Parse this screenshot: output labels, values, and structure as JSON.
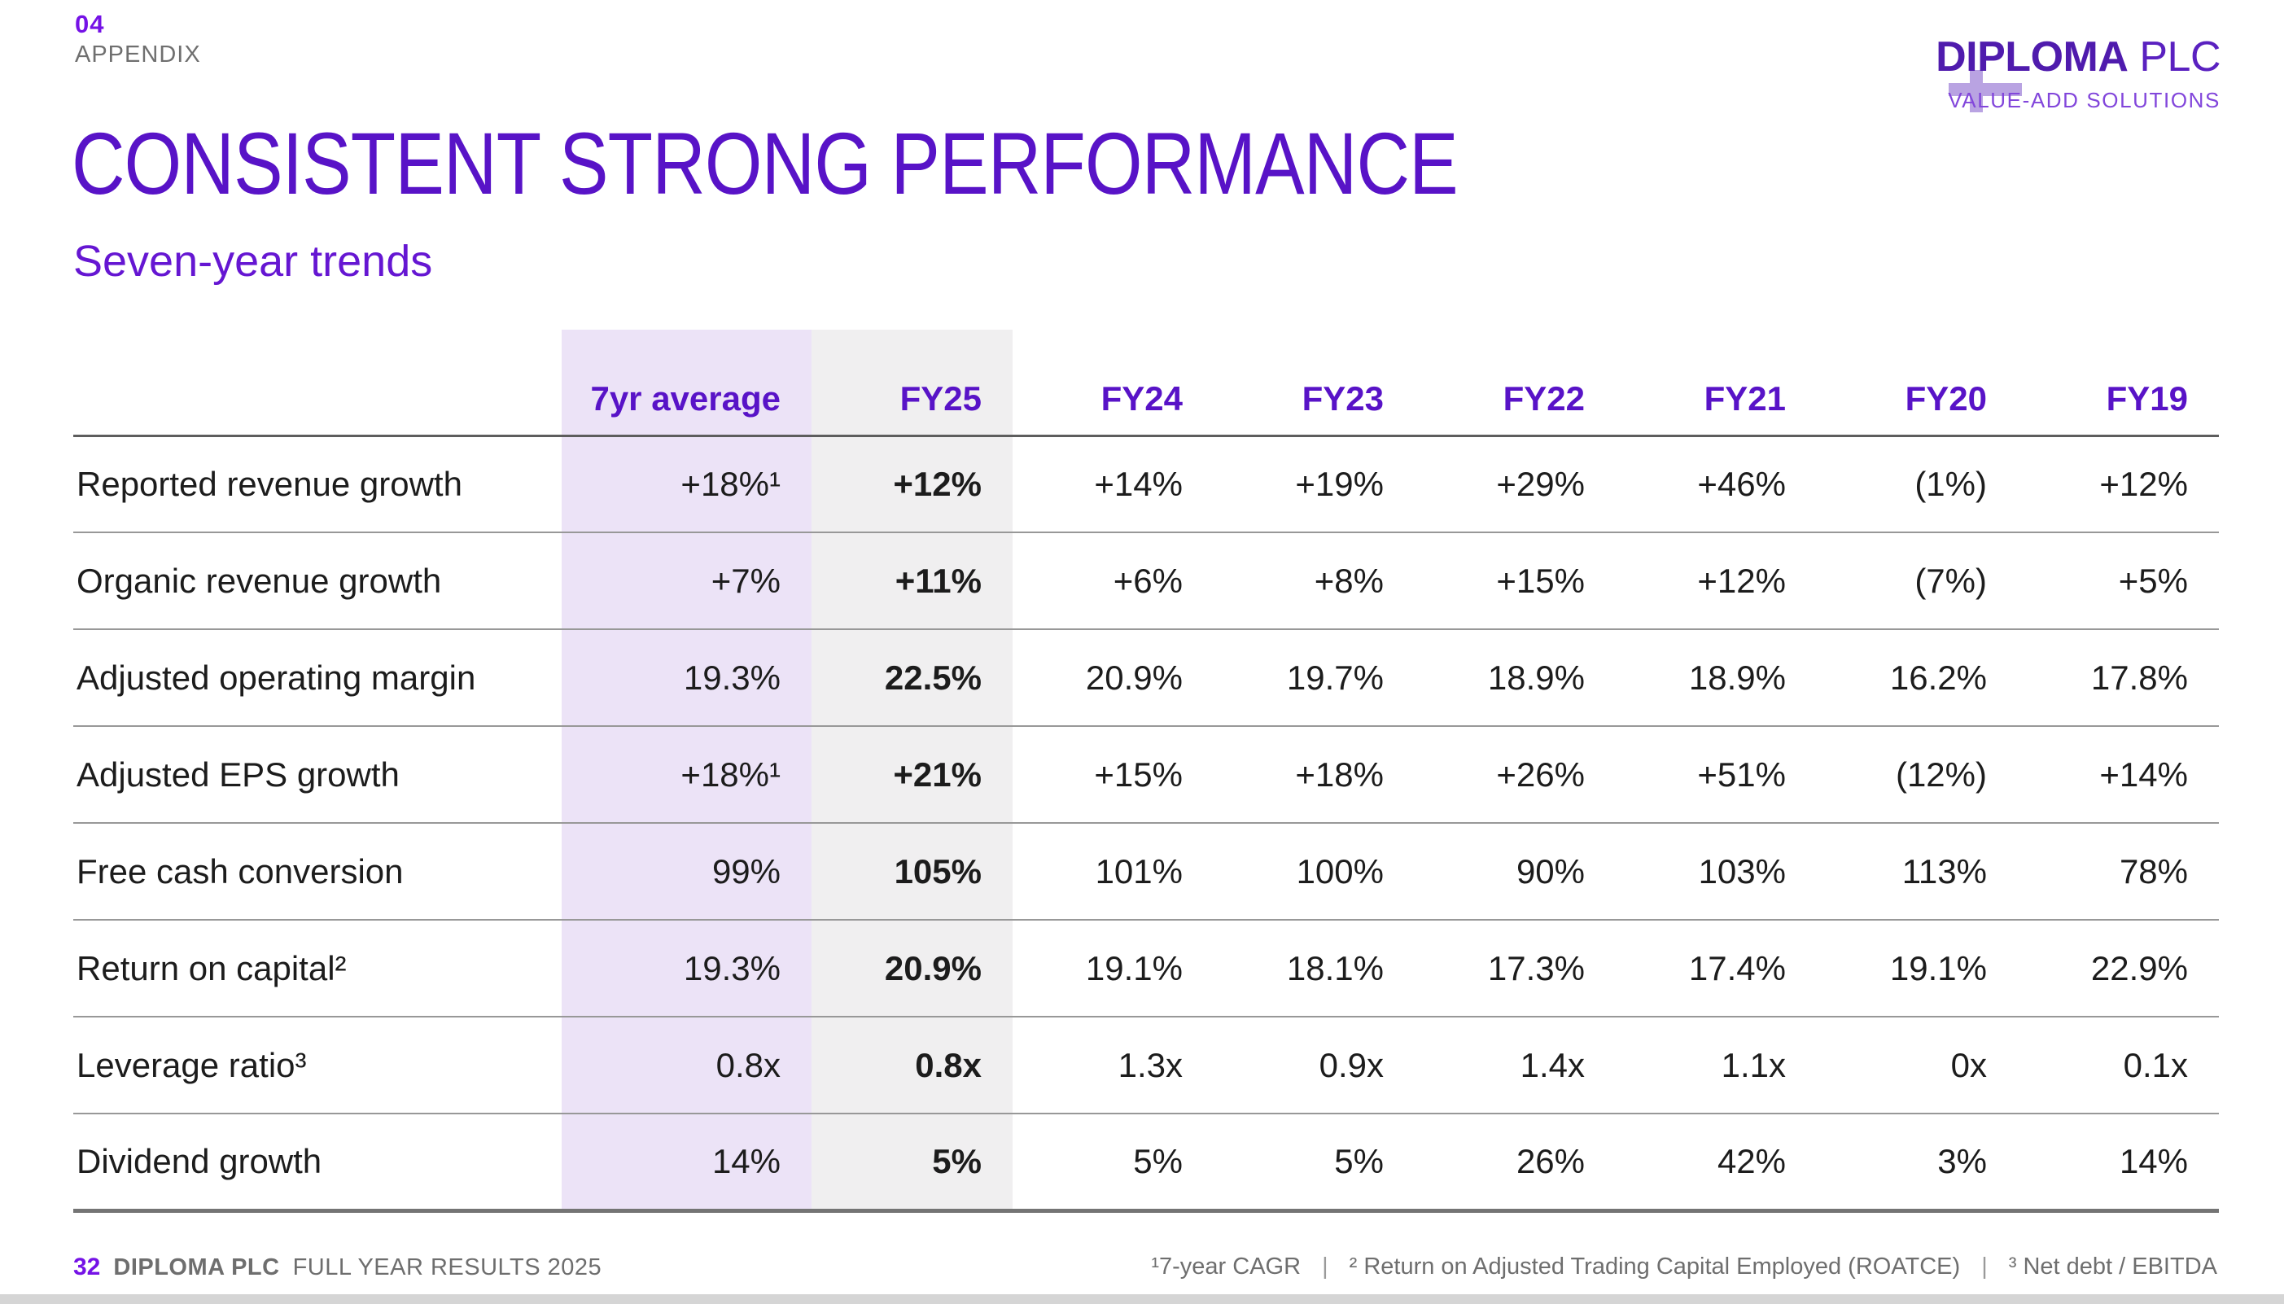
{
  "header": {
    "section_number": "04",
    "section_label": "APPENDIX",
    "title": "CONSISTENT STRONG PERFORMANCE",
    "subtitle": "Seven-year trends"
  },
  "logo": {
    "name": "DIPLOMA",
    "suffix": " PLC",
    "tagline": "VALUE-ADD SOLUTIONS"
  },
  "chart_data": {
    "type": "table",
    "title": "Seven-year trends",
    "columns": [
      "7yr average",
      "FY25",
      "FY24",
      "FY23",
      "FY22",
      "FY21",
      "FY20",
      "FY19"
    ],
    "highlighted_columns": [
      "7yr average",
      "FY25"
    ],
    "rows": [
      {
        "label": "Reported revenue growth",
        "values": [
          "+18%¹",
          "+12%",
          "+14%",
          "+19%",
          "+29%",
          "+46%",
          "(1%)",
          "+12%"
        ]
      },
      {
        "label": "Organic revenue growth",
        "values": [
          "+7%",
          "+11%",
          "+6%",
          "+8%",
          "+15%",
          "+12%",
          "(7%)",
          "+5%"
        ]
      },
      {
        "label": "Adjusted operating margin",
        "values": [
          "19.3%",
          "22.5%",
          "20.9%",
          "19.7%",
          "18.9%",
          "18.9%",
          "16.2%",
          "17.8%"
        ]
      },
      {
        "label": "Adjusted EPS growth",
        "values": [
          "+18%¹",
          "+21%",
          "+15%",
          "+18%",
          "+26%",
          "+51%",
          "(12%)",
          "+14%"
        ]
      },
      {
        "label": "Free cash conversion",
        "values": [
          "99%",
          "105%",
          "101%",
          "100%",
          "90%",
          "103%",
          "113%",
          "78%"
        ]
      },
      {
        "label": "Return on capital²",
        "values": [
          "19.3%",
          "20.9%",
          "19.1%",
          "18.1%",
          "17.3%",
          "17.4%",
          "19.1%",
          "22.9%"
        ]
      },
      {
        "label": "Leverage ratio³",
        "values": [
          "0.8x",
          "0.8x",
          "1.3x",
          "0.9x",
          "1.4x",
          "1.1x",
          "0x",
          "0.1x"
        ]
      },
      {
        "label": "Dividend growth",
        "values": [
          "14%",
          "5%",
          "5%",
          "5%",
          "26%",
          "42%",
          "3%",
          "14%"
        ]
      }
    ]
  },
  "footer": {
    "page_number": "32",
    "company": "DIPLOMA PLC",
    "report": "FULL YEAR RESULTS 2025",
    "footnote_separator": "|",
    "footnotes": [
      "¹7-year CAGR",
      "² Return on Adjusted Trading Capital Employed (ROATCE)",
      "³ Net debt / EBITDA"
    ]
  },
  "colors": {
    "brand_purple": "#5813C7",
    "accent_purple": "#7512E6",
    "logo_purple": "#4F1BAD",
    "lavender_column_bg": "#ECE3F7",
    "gray_column_bg": "#F0EFF0",
    "row_line": "#989898",
    "footer_gray": "#6E6E6E"
  }
}
